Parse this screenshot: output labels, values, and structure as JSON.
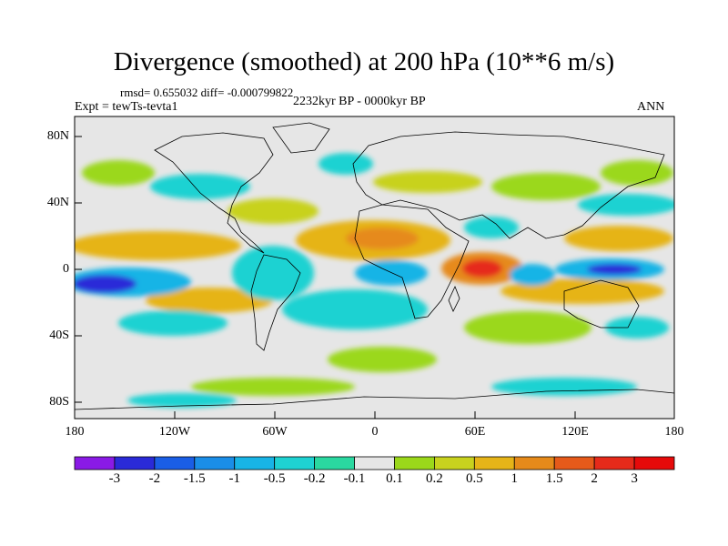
{
  "title": "Divergence (smoothed) at 200 hPa (10**6 m/s)",
  "stats_line": "rmsd= 0.655032 diff= -0.000799822",
  "experiment_label": "Expt = tewTs-tevta1",
  "period_label": "2232kyr BP - 0000kyr BP",
  "season_label": "ANN",
  "chart_data": {
    "type": "filled-contour-map",
    "variable": "Divergence (smoothed) at 200 hPa",
    "units": "10**6 m/s",
    "xlim": [
      -180,
      180
    ],
    "ylim": [
      -90,
      90
    ],
    "x_ticks": [
      "180",
      "120W",
      "60W",
      "0",
      "60E",
      "120E",
      "180"
    ],
    "y_ticks": [
      "80N",
      "40N",
      "0",
      "40S",
      "80S"
    ],
    "colorbar": {
      "labels": [
        "-3",
        "-2",
        "-1.5",
        "-1",
        "-0.5",
        "-0.2",
        "-0.1",
        "0.1",
        "0.2",
        "0.5",
        "1",
        "1.5",
        "2",
        "3"
      ],
      "colors": [
        "#8a1ae6",
        "#2a2ad8",
        "#1a5ee6",
        "#1a8ee8",
        "#18b4e6",
        "#1ed2d2",
        "#2ad8a0",
        "#e6e6e6",
        "#9bd81a",
        "#c8d21e",
        "#e6b418",
        "#e68a1a",
        "#e65a1a",
        "#e62a1a",
        "#e60a0a"
      ]
    }
  }
}
